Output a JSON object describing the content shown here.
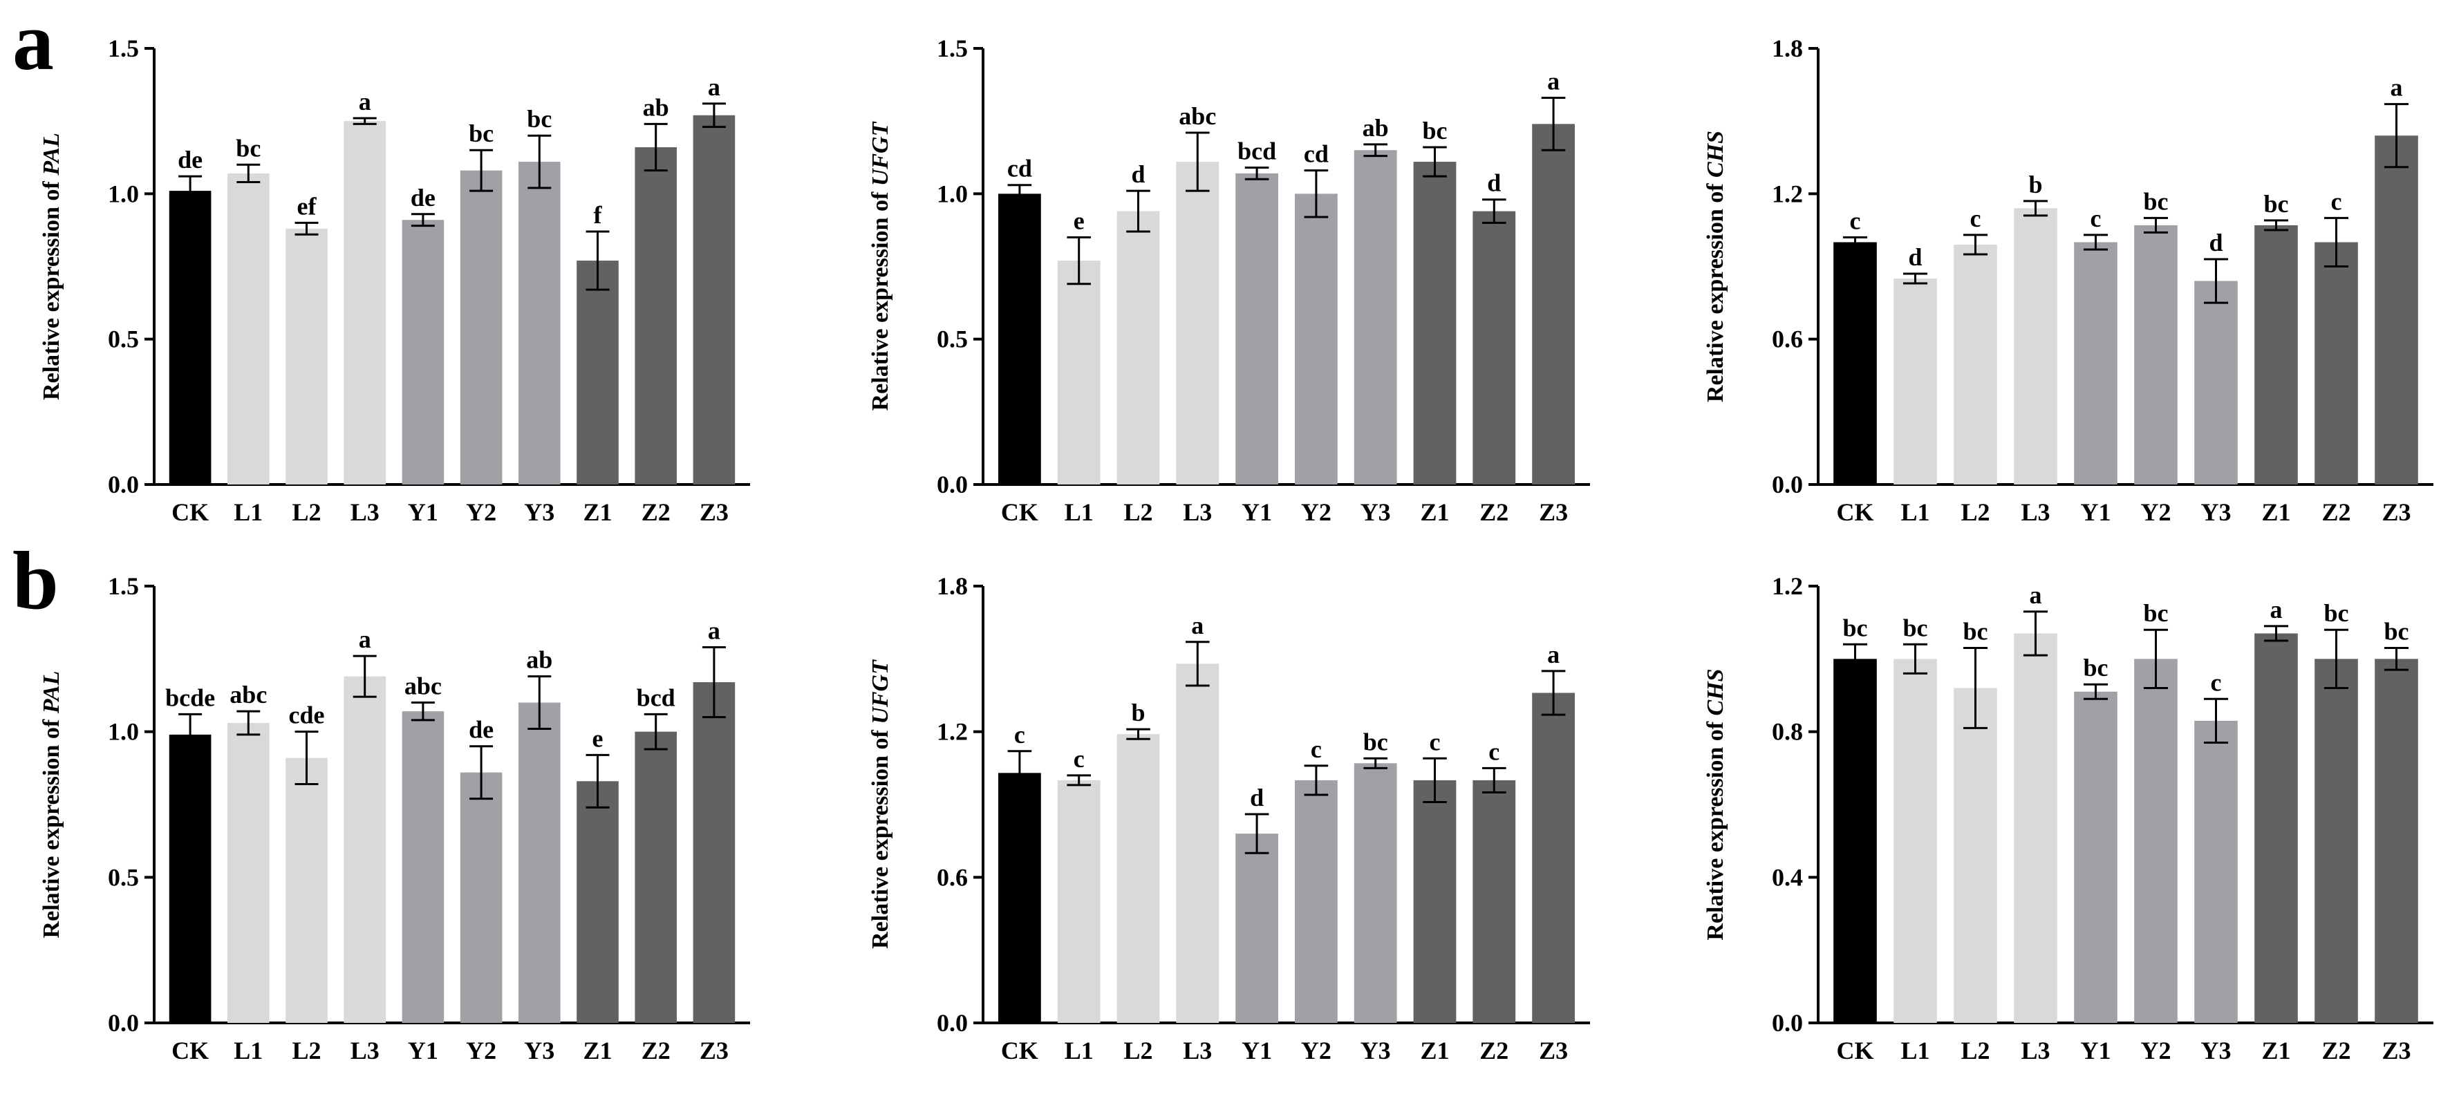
{
  "figure": {
    "panel_labels": [
      "a",
      "b"
    ]
  },
  "colors": {
    "CK": "#000000",
    "L": "#d9d9d9",
    "Y": "#a0a0a6",
    "Z": "#626262",
    "axis": "#000000"
  },
  "chart_data": [
    {
      "type": "bar",
      "panel": "a",
      "gene": "PAL",
      "ylabel_prefix": "Relative expression of ",
      "categories": [
        "CK",
        "L1",
        "L2",
        "L3",
        "Y1",
        "Y2",
        "Y3",
        "Z1",
        "Z2",
        "Z3"
      ],
      "values": [
        1.01,
        1.07,
        0.88,
        1.25,
        0.91,
        1.08,
        1.11,
        0.77,
        1.16,
        1.27
      ],
      "errors": [
        0.05,
        0.03,
        0.02,
        0.01,
        0.02,
        0.07,
        0.09,
        0.1,
        0.08,
        0.04
      ],
      "letters": [
        "de",
        "bc",
        "ef",
        "a",
        "de",
        "bc",
        "bc",
        "f",
        "ab",
        "a"
      ],
      "ylim": [
        0,
        1.5
      ],
      "yticks": [
        "0.0",
        "0.5",
        "1.0",
        "1.5"
      ]
    },
    {
      "type": "bar",
      "panel": "a",
      "gene": "UFGT",
      "ylabel_prefix": "Relative expression of ",
      "categories": [
        "CK",
        "L1",
        "L2",
        "L3",
        "Y1",
        "Y2",
        "Y3",
        "Z1",
        "Z2",
        "Z3"
      ],
      "values": [
        1.0,
        0.77,
        0.94,
        1.11,
        1.07,
        1.0,
        1.15,
        1.11,
        0.94,
        1.24
      ],
      "errors": [
        0.03,
        0.08,
        0.07,
        0.1,
        0.02,
        0.08,
        0.02,
        0.05,
        0.04,
        0.09
      ],
      "letters": [
        "cd",
        "e",
        "d",
        "abc",
        "bcd",
        "cd",
        "ab",
        "bc",
        "d",
        "a"
      ],
      "ylim": [
        0,
        1.5
      ],
      "yticks": [
        "0.0",
        "0.5",
        "1.0",
        "1.5"
      ]
    },
    {
      "type": "bar",
      "panel": "a",
      "gene": "CHS",
      "ylabel_prefix": "Relative expression of ",
      "categories": [
        "CK",
        "L1",
        "L2",
        "L3",
        "Y1",
        "Y2",
        "Y3",
        "Z1",
        "Z2",
        "Z3"
      ],
      "values": [
        1.0,
        0.85,
        0.99,
        1.14,
        1.0,
        1.07,
        0.84,
        1.07,
        1.0,
        1.44
      ],
      "errors": [
        0.02,
        0.02,
        0.04,
        0.03,
        0.03,
        0.03,
        0.09,
        0.02,
        0.1,
        0.13
      ],
      "letters": [
        "c",
        "d",
        "c",
        "b",
        "c",
        "bc",
        "d",
        "bc",
        "c",
        "a"
      ],
      "ylim": [
        0,
        1.8
      ],
      "yticks": [
        "0.0",
        "0.6",
        "1.2",
        "1.8"
      ]
    },
    {
      "type": "bar",
      "panel": "b",
      "gene": "PAL",
      "ylabel_prefix": "Relative expression of ",
      "categories": [
        "CK",
        "L1",
        "L2",
        "L3",
        "Y1",
        "Y2",
        "Y3",
        "Z1",
        "Z2",
        "Z3"
      ],
      "values": [
        0.99,
        1.03,
        0.91,
        1.19,
        1.07,
        0.86,
        1.1,
        0.83,
        1.0,
        1.17
      ],
      "errors": [
        0.07,
        0.04,
        0.09,
        0.07,
        0.03,
        0.09,
        0.09,
        0.09,
        0.06,
        0.12
      ],
      "letters": [
        "bcde",
        "abc",
        "cde",
        "a",
        "abc",
        "de",
        "ab",
        "e",
        "bcd",
        "a"
      ],
      "ylim": [
        0,
        1.5
      ],
      "yticks": [
        "0.0",
        "0.5",
        "1.0",
        "1.5"
      ]
    },
    {
      "type": "bar",
      "panel": "b",
      "gene": "UFGT",
      "ylabel_prefix": "Relative expression of ",
      "categories": [
        "CK",
        "L1",
        "L2",
        "L3",
        "Y1",
        "Y2",
        "Y3",
        "Z1",
        "Z2",
        "Z3"
      ],
      "values": [
        1.03,
        1.0,
        1.19,
        1.48,
        0.78,
        1.0,
        1.07,
        1.0,
        1.0,
        1.36
      ],
      "errors": [
        0.09,
        0.02,
        0.02,
        0.09,
        0.08,
        0.06,
        0.02,
        0.09,
        0.05,
        0.09
      ],
      "letters": [
        "c",
        "c",
        "b",
        "a",
        "d",
        "c",
        "bc",
        "c",
        "c",
        "a"
      ],
      "ylim": [
        0,
        1.8
      ],
      "yticks": [
        "0.0",
        "0.6",
        "1.2",
        "1.8"
      ]
    },
    {
      "type": "bar",
      "panel": "b",
      "gene": "CHS",
      "ylabel_prefix": "Relative expression of ",
      "categories": [
        "CK",
        "L1",
        "L2",
        "L3",
        "Y1",
        "Y2",
        "Y3",
        "Z1",
        "Z2",
        "Z3"
      ],
      "values": [
        1.0,
        1.0,
        0.92,
        1.07,
        0.91,
        1.0,
        0.83,
        1.07,
        1.0,
        1.0
      ],
      "errors": [
        0.04,
        0.04,
        0.11,
        0.06,
        0.02,
        0.08,
        0.06,
        0.02,
        0.08,
        0.03
      ],
      "letters": [
        "bc",
        "bc",
        "bc",
        "a",
        "bc",
        "bc",
        "c",
        "a",
        "bc",
        "bc"
      ],
      "ylim": [
        0,
        1.2
      ],
      "yticks": [
        "0.0",
        "0.4",
        "0.8",
        "1.2"
      ]
    }
  ]
}
